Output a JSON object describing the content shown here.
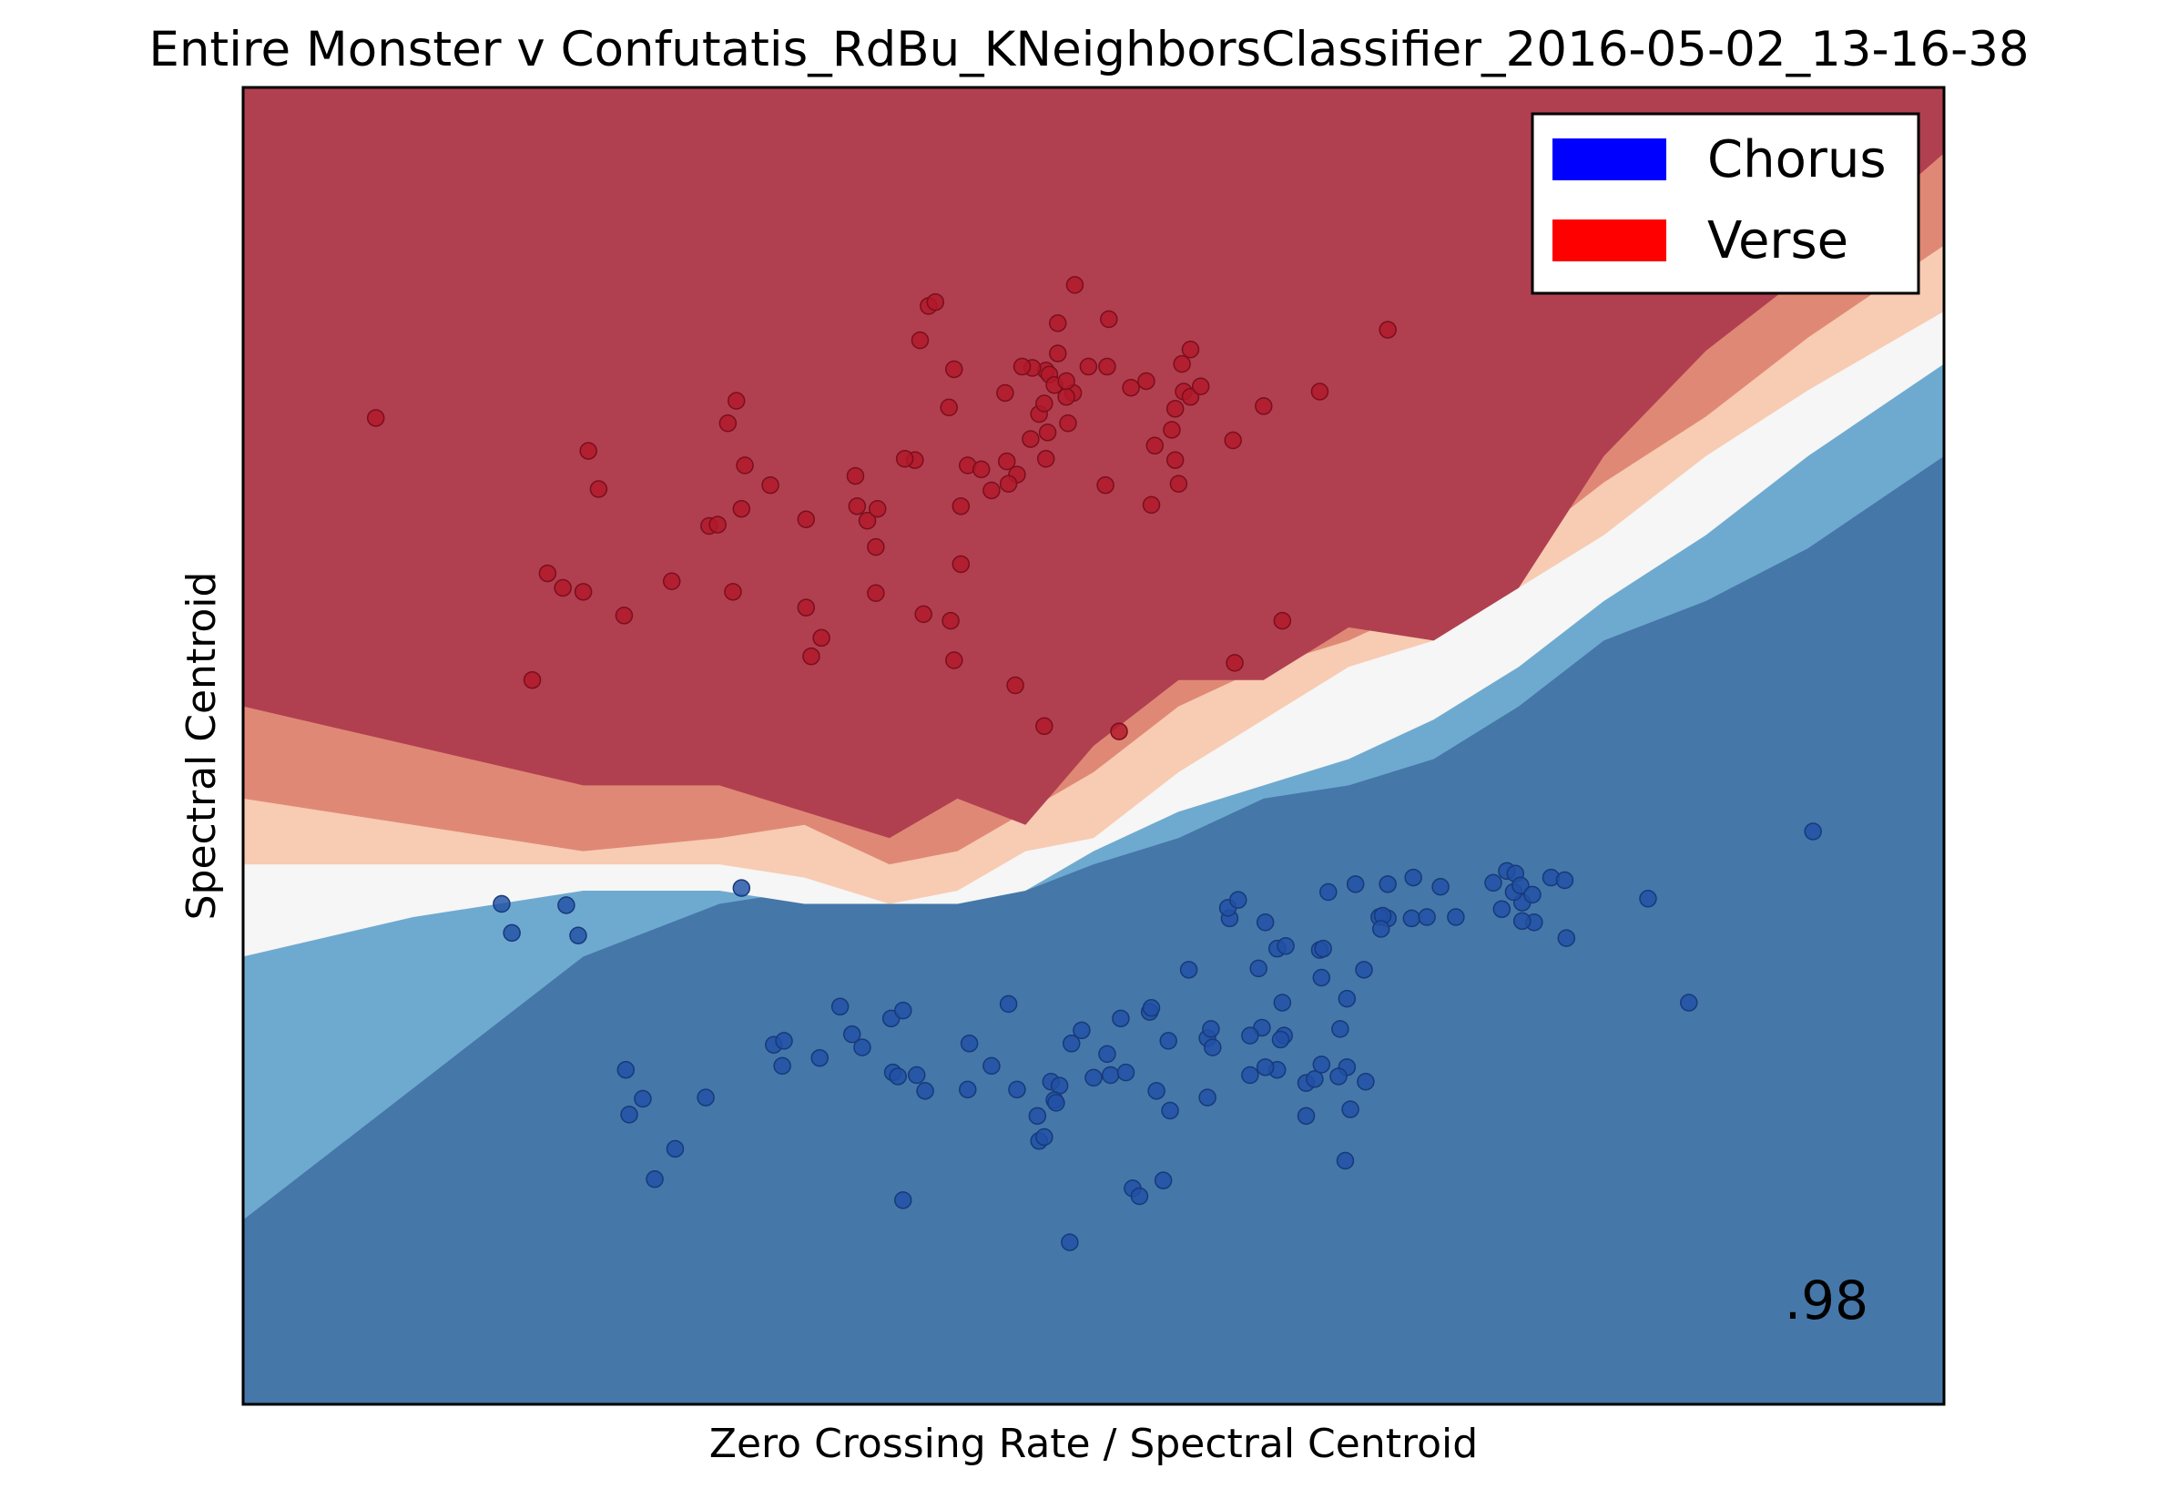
{
  "chart_data": {
    "type": "scatter",
    "title": "Entire Monster v Confutatis_RdBu_KNeighborsClassifier_2016-05-02_13-16-38",
    "xlabel": "Zero Crossing Rate / Spectral Centroid",
    "ylabel": "Spectral Centroid",
    "score_annotation": ".98",
    "legend_position": "top-right",
    "grid": false,
    "ticks": "none",
    "colormap": "RdBu",
    "xlim": [
      0,
      1
    ],
    "ylim": [
      0,
      1
    ],
    "legend": [
      {
        "label": "Chorus",
        "color": "#0000ff"
      },
      {
        "label": "Verse",
        "color": "#ff0000"
      }
    ],
    "region_colors": [
      "#4577a9",
      "#6eaad0",
      "#f5f6f5",
      "#f8cbb3",
      "#e08876",
      "#b04050"
    ],
    "boundaries": {
      "x": [
        0.0,
        0.1,
        0.2,
        0.28,
        0.33,
        0.38,
        0.42,
        0.46,
        0.5,
        0.55,
        0.6,
        0.65,
        0.7,
        0.75,
        0.8,
        0.86,
        0.92,
        1.0
      ],
      "levels": [
        [
          0.14,
          0.24,
          0.34,
          0.38,
          0.39,
          0.38,
          0.38,
          0.39,
          0.41,
          0.43,
          0.46,
          0.47,
          0.49,
          0.53,
          0.58,
          0.61,
          0.65,
          0.72
        ],
        [
          0.34,
          0.37,
          0.39,
          0.39,
          0.38,
          0.38,
          0.38,
          0.39,
          0.42,
          0.45,
          0.47,
          0.49,
          0.52,
          0.56,
          0.61,
          0.66,
          0.72,
          0.79
        ],
        [
          0.41,
          0.41,
          0.41,
          0.41,
          0.4,
          0.38,
          0.39,
          0.42,
          0.43,
          0.48,
          0.52,
          0.56,
          0.58,
          0.62,
          0.66,
          0.72,
          0.77,
          0.83
        ],
        [
          0.46,
          0.44,
          0.42,
          0.43,
          0.44,
          0.41,
          0.42,
          0.45,
          0.48,
          0.53,
          0.56,
          0.58,
          0.61,
          0.65,
          0.7,
          0.75,
          0.81,
          0.88
        ],
        [
          0.53,
          0.5,
          0.47,
          0.47,
          0.45,
          0.43,
          0.46,
          0.44,
          0.5,
          0.55,
          0.55,
          0.59,
          0.58,
          0.62,
          0.72,
          0.8,
          0.86,
          0.95
        ]
      ]
    },
    "series": [
      {
        "name": "Verse",
        "points": [
          [
            0.078,
            0.749
          ],
          [
            0.203,
            0.724
          ],
          [
            0.209,
            0.695
          ],
          [
            0.179,
            0.631
          ],
          [
            0.2,
            0.617
          ],
          [
            0.224,
            0.599
          ],
          [
            0.188,
            0.62
          ],
          [
            0.17,
            0.55
          ],
          [
            0.252,
            0.625
          ],
          [
            0.288,
            0.617
          ],
          [
            0.274,
            0.667
          ],
          [
            0.279,
            0.668
          ],
          [
            0.293,
            0.68
          ],
          [
            0.31,
            0.698
          ],
          [
            0.295,
            0.713
          ],
          [
            0.285,
            0.745
          ],
          [
            0.29,
            0.762
          ],
          [
            0.36,
            0.705
          ],
          [
            0.361,
            0.682
          ],
          [
            0.367,
            0.671
          ],
          [
            0.331,
            0.672
          ],
          [
            0.372,
            0.651
          ],
          [
            0.372,
            0.616
          ],
          [
            0.34,
            0.582
          ],
          [
            0.334,
            0.568
          ],
          [
            0.331,
            0.605
          ],
          [
            0.395,
            0.717
          ],
          [
            0.389,
            0.718
          ],
          [
            0.373,
            0.68
          ],
          [
            0.4,
            0.6
          ],
          [
            0.416,
            0.595
          ],
          [
            0.418,
            0.565
          ],
          [
            0.422,
            0.638
          ],
          [
            0.426,
            0.713
          ],
          [
            0.44,
            0.694
          ],
          [
            0.449,
            0.716
          ],
          [
            0.463,
            0.733
          ],
          [
            0.455,
            0.706
          ],
          [
            0.468,
            0.752
          ],
          [
            0.472,
            0.718
          ],
          [
            0.473,
            0.738
          ],
          [
            0.415,
            0.757
          ],
          [
            0.398,
            0.808
          ],
          [
            0.403,
            0.834
          ],
          [
            0.407,
            0.837
          ],
          [
            0.448,
            0.768
          ],
          [
            0.45,
            0.699
          ],
          [
            0.472,
            0.785
          ],
          [
            0.479,
            0.798
          ],
          [
            0.488,
            0.768
          ],
          [
            0.497,
            0.788
          ],
          [
            0.418,
            0.786
          ],
          [
            0.434,
            0.71
          ],
          [
            0.471,
            0.76
          ],
          [
            0.464,
            0.787
          ],
          [
            0.474,
            0.782
          ],
          [
            0.477,
            0.774
          ],
          [
            0.458,
            0.788
          ],
          [
            0.485,
            0.745
          ],
          [
            0.484,
            0.765
          ],
          [
            0.489,
            0.85
          ],
          [
            0.509,
            0.824
          ],
          [
            0.508,
            0.788
          ],
          [
            0.479,
            0.821
          ],
          [
            0.484,
            0.777
          ],
          [
            0.507,
            0.698
          ],
          [
            0.522,
            0.772
          ],
          [
            0.553,
            0.769
          ],
          [
            0.557,
            0.765
          ],
          [
            0.546,
            0.74
          ],
          [
            0.536,
            0.728
          ],
          [
            0.563,
            0.773
          ],
          [
            0.534,
            0.683
          ],
          [
            0.55,
            0.699
          ],
          [
            0.548,
            0.717
          ],
          [
            0.548,
            0.756
          ],
          [
            0.552,
            0.79
          ],
          [
            0.6,
            0.758
          ],
          [
            0.582,
            0.732
          ],
          [
            0.633,
            0.769
          ],
          [
            0.673,
            0.816
          ],
          [
            0.583,
            0.563
          ],
          [
            0.515,
            0.511
          ],
          [
            0.454,
            0.546
          ],
          [
            0.471,
            0.515
          ],
          [
            0.422,
            0.682
          ],
          [
            0.611,
            0.595
          ],
          [
            0.531,
            0.777
          ],
          [
            0.557,
            0.801
          ]
        ]
      },
      {
        "name": "Chorus",
        "points": [
          [
            0.19,
            0.379
          ],
          [
            0.197,
            0.356
          ],
          [
            0.225,
            0.254
          ],
          [
            0.235,
            0.232
          ],
          [
            0.227,
            0.22
          ],
          [
            0.272,
            0.233
          ],
          [
            0.254,
            0.194
          ],
          [
            0.242,
            0.171
          ],
          [
            0.312,
            0.273
          ],
          [
            0.318,
            0.276
          ],
          [
            0.317,
            0.257
          ],
          [
            0.339,
            0.263
          ],
          [
            0.358,
            0.281
          ],
          [
            0.351,
            0.302
          ],
          [
            0.364,
            0.271
          ],
          [
            0.382,
            0.252
          ],
          [
            0.381,
            0.293
          ],
          [
            0.388,
            0.299
          ],
          [
            0.385,
            0.249
          ],
          [
            0.396,
            0.25
          ],
          [
            0.401,
            0.238
          ],
          [
            0.44,
            0.257
          ],
          [
            0.475,
            0.245
          ],
          [
            0.508,
            0.266
          ],
          [
            0.51,
            0.25
          ],
          [
            0.537,
            0.238
          ],
          [
            0.567,
            0.278
          ],
          [
            0.556,
            0.33
          ],
          [
            0.612,
            0.28
          ],
          [
            0.608,
            0.254
          ],
          [
            0.567,
            0.233
          ],
          [
            0.48,
            0.242
          ],
          [
            0.45,
            0.304
          ],
          [
            0.493,
            0.284
          ],
          [
            0.516,
            0.293
          ],
          [
            0.519,
            0.252
          ],
          [
            0.477,
            0.231
          ],
          [
            0.478,
            0.229
          ],
          [
            0.388,
            0.155
          ],
          [
            0.487,
            0.274
          ],
          [
            0.597,
            0.331
          ],
          [
            0.58,
            0.369
          ],
          [
            0.579,
            0.377
          ],
          [
            0.585,
            0.383
          ],
          [
            0.601,
            0.366
          ],
          [
            0.633,
            0.345
          ],
          [
            0.608,
            0.346
          ],
          [
            0.613,
            0.348
          ],
          [
            0.634,
            0.324
          ],
          [
            0.635,
            0.346
          ],
          [
            0.638,
            0.389
          ],
          [
            0.654,
            0.395
          ],
          [
            0.673,
            0.369
          ],
          [
            0.649,
            0.256
          ],
          [
            0.592,
            0.25
          ],
          [
            0.625,
            0.244
          ],
          [
            0.63,
            0.247
          ],
          [
            0.644,
            0.249
          ],
          [
            0.634,
            0.258
          ],
          [
            0.66,
            0.245
          ],
          [
            0.625,
            0.219
          ],
          [
            0.601,
            0.256
          ],
          [
            0.599,
            0.286
          ],
          [
            0.651,
            0.224
          ],
          [
            0.668,
            0.37
          ],
          [
            0.67,
            0.371
          ],
          [
            0.687,
            0.369
          ],
          [
            0.673,
            0.395
          ],
          [
            0.688,
            0.4
          ],
          [
            0.704,
            0.393
          ],
          [
            0.696,
            0.37
          ],
          [
            0.713,
            0.37
          ],
          [
            0.735,
            0.396
          ],
          [
            0.743,
            0.405
          ],
          [
            0.748,
            0.403
          ],
          [
            0.752,
            0.381
          ],
          [
            0.747,
            0.389
          ],
          [
            0.751,
            0.394
          ],
          [
            0.74,
            0.376
          ],
          [
            0.758,
            0.387
          ],
          [
            0.769,
            0.4
          ],
          [
            0.777,
            0.398
          ],
          [
            0.759,
            0.366
          ],
          [
            0.778,
            0.354
          ],
          [
            0.826,
            0.384
          ],
          [
            0.85,
            0.305
          ],
          [
            0.923,
            0.435
          ],
          [
            0.752,
            0.367
          ],
          [
            0.486,
            0.123
          ],
          [
            0.592,
            0.28
          ],
          [
            0.533,
            0.298
          ],
          [
            0.669,
            0.361
          ],
          [
            0.611,
            0.305
          ],
          [
            0.534,
            0.301
          ],
          [
            0.544,
            0.276
          ],
          [
            0.57,
            0.271
          ],
          [
            0.648,
            0.185
          ],
          [
            0.649,
            0.308
          ],
          [
            0.659,
            0.33
          ],
          [
            0.645,
            0.285
          ],
          [
            0.61,
            0.277
          ],
          [
            0.541,
            0.17
          ],
          [
            0.569,
            0.285
          ],
          [
            0.545,
            0.223
          ],
          [
            0.523,
            0.164
          ],
          [
            0.527,
            0.158
          ],
          [
            0.468,
            0.2
          ],
          [
            0.471,
            0.203
          ],
          [
            0.455,
            0.239
          ],
          [
            0.467,
            0.219
          ],
          [
            0.5,
            0.248
          ],
          [
            0.427,
            0.274
          ],
          [
            0.426,
            0.239
          ],
          [
            0.152,
            0.38
          ],
          [
            0.158,
            0.358
          ],
          [
            0.293,
            0.392
          ]
        ]
      }
    ]
  }
}
